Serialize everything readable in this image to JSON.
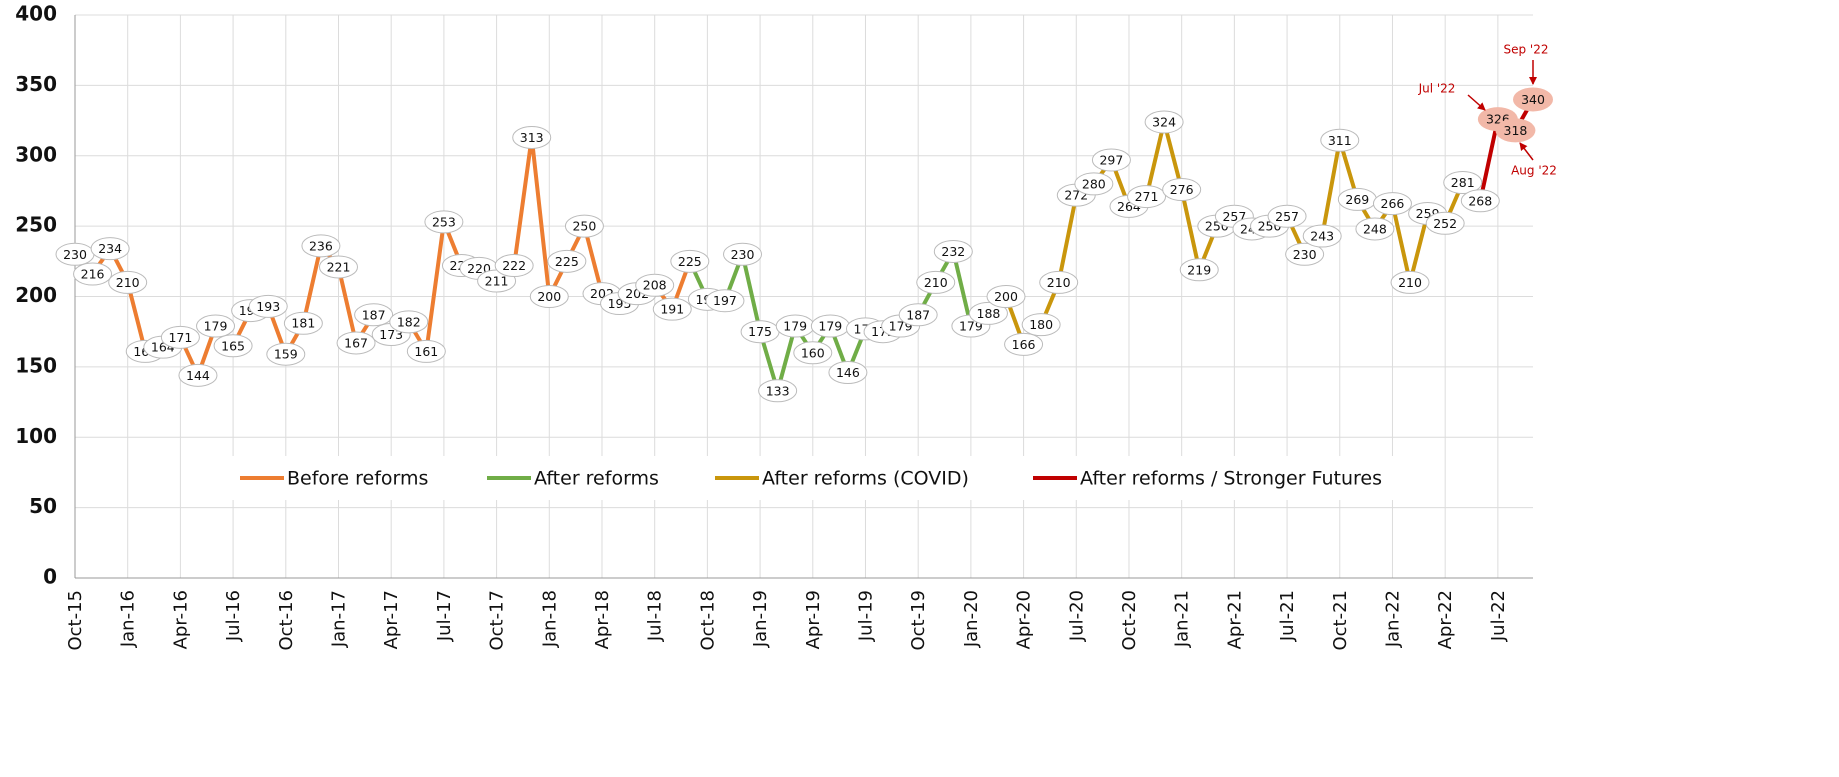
{
  "chart_data": {
    "type": "line",
    "categories": [
      "Oct-15",
      null,
      null,
      "Jan-16",
      null,
      null,
      "Apr-16",
      null,
      null,
      "Jul-16",
      null,
      null,
      "Oct-16",
      null,
      null,
      "Jan-17",
      null,
      null,
      "Apr-17",
      null,
      null,
      "Jul-17",
      null,
      null,
      "Oct-17",
      null,
      null,
      "Jan-18",
      null,
      null,
      "Apr-18",
      null,
      null,
      "Jul-18",
      null,
      null,
      "Oct-18",
      null,
      null,
      "Jan-19",
      null,
      null,
      "Apr-19",
      null,
      null,
      "Jul-19",
      null,
      null,
      "Oct-19",
      null,
      null,
      "Jan-20",
      null,
      null,
      "Apr-20",
      null,
      null,
      "Jul-20",
      null,
      null,
      "Oct-20",
      null,
      null,
      "Jan-21",
      null,
      null,
      "Apr-21",
      null,
      null,
      "Jul-21",
      null,
      null,
      "Oct-21",
      null,
      null,
      "Jan-22",
      null,
      null,
      "Apr-22",
      null,
      null,
      "Jul-22",
      null,
      null
    ],
    "series": [
      {
        "name": "Before reforms",
        "color": "#ed7d31",
        "values": [
          230,
          216,
          234,
          210,
          161,
          164,
          171,
          144,
          179,
          165,
          190,
          193,
          159,
          181,
          236,
          221,
          167,
          187,
          173,
          182,
          161,
          253,
          222,
          220,
          211,
          222,
          313,
          200,
          225,
          250,
          202,
          195,
          202,
          208,
          191,
          225,
          null,
          null,
          null,
          null,
          null,
          null,
          null,
          null,
          null,
          null,
          null,
          null,
          null,
          null,
          null,
          null,
          null,
          null,
          null,
          null,
          null,
          null,
          null,
          null,
          null,
          null,
          null,
          null,
          null,
          null,
          null,
          null,
          null,
          null,
          null,
          null,
          null,
          null,
          null,
          null,
          null,
          null,
          null,
          null,
          null,
          null,
          null,
          null
        ]
      },
      {
        "name": "After reforms",
        "color": "#70ad47",
        "values": [
          null,
          null,
          null,
          null,
          null,
          null,
          null,
          null,
          null,
          null,
          null,
          null,
          null,
          null,
          null,
          null,
          null,
          null,
          null,
          null,
          null,
          null,
          null,
          null,
          null,
          null,
          null,
          null,
          null,
          null,
          null,
          null,
          null,
          null,
          null,
          null,
          198,
          197,
          230,
          175,
          133,
          179,
          160,
          179,
          146,
          177,
          175,
          179,
          187,
          210,
          232,
          179,
          188,
          200,
          null,
          null,
          null,
          null,
          null,
          null,
          null,
          null,
          null,
          null,
          null,
          null,
          null,
          null,
          null,
          null,
          null,
          null,
          null,
          null,
          null,
          null,
          null,
          null,
          null,
          null,
          null,
          null,
          null,
          null
        ]
      },
      {
        "name": "After reforms (COVID)",
        "color": "#c9960c",
        "values": [
          null,
          null,
          null,
          null,
          null,
          null,
          null,
          null,
          null,
          null,
          null,
          null,
          null,
          null,
          null,
          null,
          null,
          null,
          null,
          null,
          null,
          null,
          null,
          null,
          null,
          null,
          null,
          null,
          null,
          null,
          null,
          null,
          null,
          null,
          null,
          null,
          null,
          null,
          null,
          null,
          null,
          null,
          null,
          null,
          null,
          null,
          null,
          null,
          null,
          null,
          null,
          null,
          null,
          null,
          166,
          180,
          210,
          272,
          280,
          297,
          264,
          271,
          324,
          276,
          219,
          250,
          257,
          248,
          250,
          257,
          230,
          243,
          311,
          269,
          248,
          266,
          210,
          259,
          252,
          281,
          268,
          null,
          null,
          null
        ]
      },
      {
        "name": "After reforms / Stronger Futures",
        "color": "#c00000",
        "label_fill": "#f2b8a8",
        "values": [
          null,
          null,
          null,
          null,
          null,
          null,
          null,
          null,
          null,
          null,
          null,
          null,
          null,
          null,
          null,
          null,
          null,
          null,
          null,
          null,
          null,
          null,
          null,
          null,
          null,
          null,
          null,
          null,
          null,
          null,
          null,
          null,
          null,
          null,
          null,
          null,
          null,
          null,
          null,
          null,
          null,
          null,
          null,
          null,
          null,
          null,
          null,
          null,
          null,
          null,
          null,
          null,
          null,
          null,
          null,
          null,
          null,
          null,
          null,
          null,
          null,
          null,
          null,
          null,
          null,
          null,
          null,
          null,
          null,
          null,
          null,
          null,
          null,
          null,
          null,
          null,
          null,
          null,
          null,
          null,
          null,
          326,
          318,
          340
        ]
      }
    ],
    "annotations": [
      "Jul '22",
      "Aug '22",
      "Sep '22"
    ],
    "ylim": [
      0,
      400
    ],
    "yticks": [
      0,
      50,
      100,
      150,
      200,
      250,
      300,
      350,
      400
    ],
    "grid": true
  }
}
